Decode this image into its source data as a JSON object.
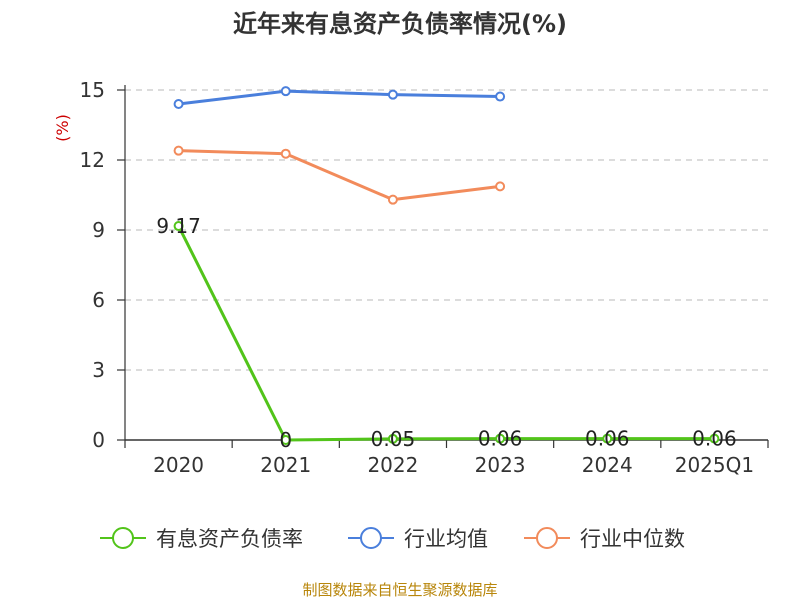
{
  "chart_data": {
    "type": "line",
    "title": "近年来有息资产负债率情况(%)",
    "ylabel": "(%)",
    "xlabel": "",
    "ylim": [
      0,
      15
    ],
    "yticks": [
      "0",
      "3",
      "6",
      "9",
      "12",
      "15"
    ],
    "categories": [
      "2020",
      "2021",
      "2022",
      "2023",
      "2024",
      "2025Q1"
    ],
    "grid": true,
    "legend_position": "bottom",
    "series": [
      {
        "name": "有息资产负债率",
        "color": "#52c41a",
        "values": [
          9.17,
          0,
          0.05,
          0.06,
          0.06,
          0.06
        ],
        "labels": [
          "9.17",
          "0",
          "0.05",
          "0.06",
          "0.06",
          "0.06"
        ]
      },
      {
        "name": "行业均值",
        "color": "#4a7fdc",
        "values": [
          14.4,
          14.95,
          14.8,
          14.72,
          null,
          null
        ]
      },
      {
        "name": "行业中位数",
        "color": "#f28b5b",
        "values": [
          12.4,
          12.27,
          10.3,
          10.87,
          null,
          null
        ]
      }
    ]
  },
  "source_text": "制图数据来自恒生聚源数据库"
}
